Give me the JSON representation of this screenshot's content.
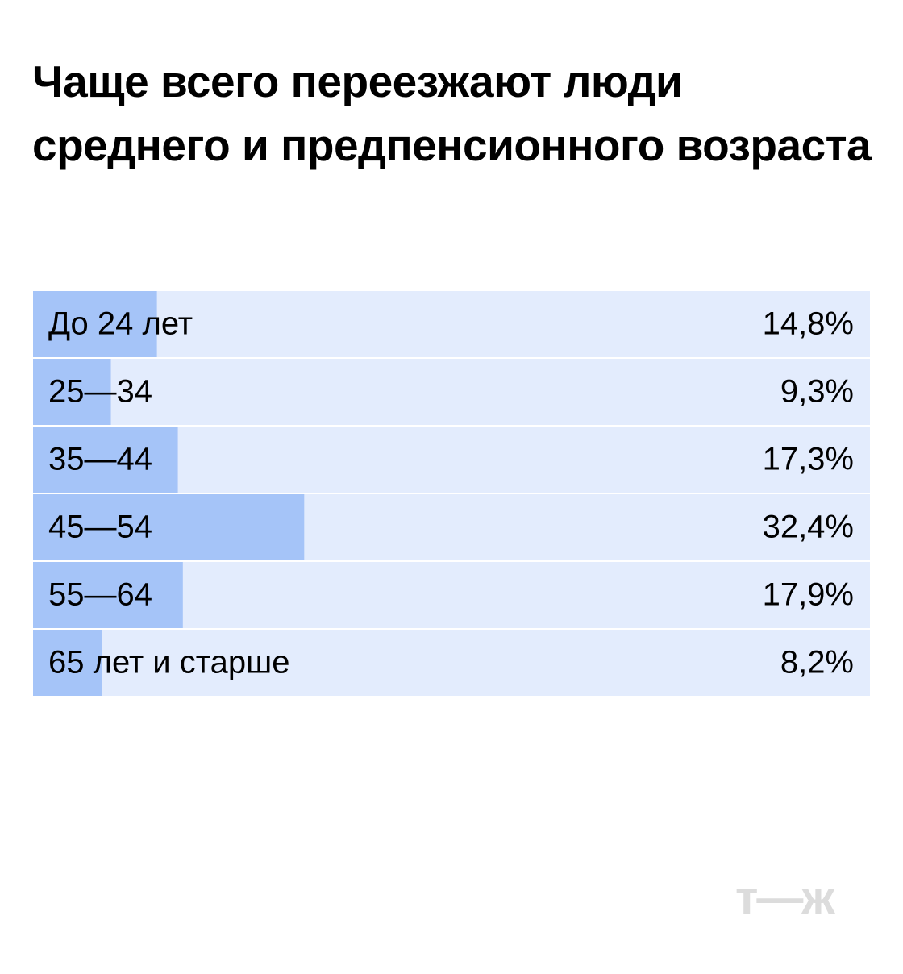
{
  "chart_data": {
    "type": "bar",
    "orientation": "horizontal",
    "title": "Чаще всего переезжают люди среднего и предпенсионного возраста",
    "categories": [
      "До 24 лет",
      "25—34",
      "35—44",
      "45—54",
      "55—64",
      "65 лет и старше"
    ],
    "values": [
      14.8,
      9.3,
      17.3,
      32.4,
      17.9,
      8.2
    ],
    "value_labels": [
      "14,8%",
      "9,3%",
      "17,3%",
      "32,4%",
      "17,9%",
      "8,2%"
    ],
    "color": "#a5c4f8",
    "track_color": "#e3ecfd",
    "xlim": [
      0,
      100
    ]
  },
  "logo": "т—ж"
}
